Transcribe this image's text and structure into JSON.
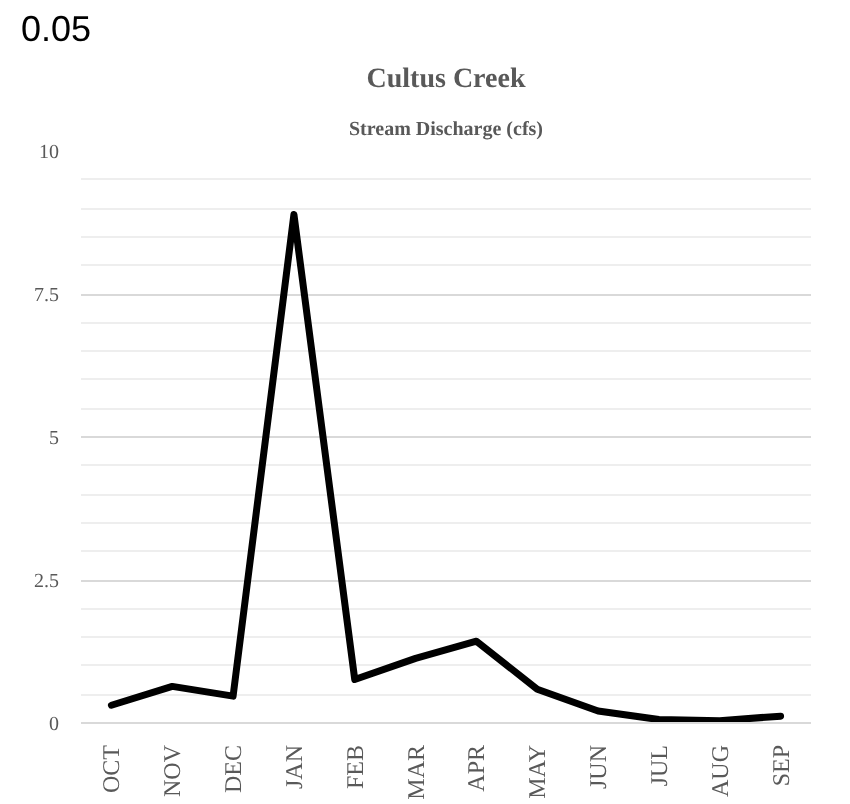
{
  "chart_data": {
    "type": "line",
    "title": "Cultus Creek",
    "subtitle": "Stream Discharge (cfs)",
    "annotations": [
      "0.05"
    ],
    "categories": [
      "OCT",
      "NOV",
      "DEC",
      "JAN",
      "FEB",
      "MAR",
      "APR",
      "MAY",
      "JUN",
      "JUL",
      "AUG",
      "SEP"
    ],
    "series": [
      {
        "color": "#000000",
        "values": [
          0.31,
          0.64,
          0.47,
          8.89,
          0.76,
          1.13,
          1.43,
          0.59,
          0.21,
          0.06,
          0.04,
          0.12
        ]
      }
    ],
    "ylim": [
      0,
      10
    ],
    "yticks": [
      0,
      2.5,
      5,
      7.5,
      10
    ],
    "grid": "y",
    "line_style": "solid"
  }
}
